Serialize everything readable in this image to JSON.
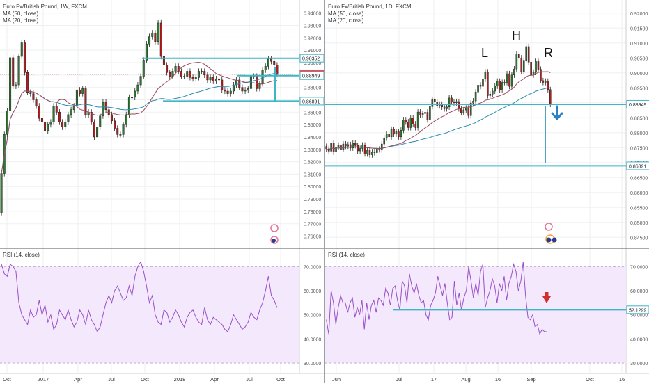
{
  "panes": [
    {
      "title": "Euro Fx/British Pound, 1W, FXCM",
      "indicators": [
        "MA (50, close)",
        "MA (20, close)"
      ],
      "rsi_label": "RSI (14, close)"
    },
    {
      "title": "Euro Fx/British Pound, 1D, FXCM",
      "indicators": [
        "MA (50, close)",
        "MA (20, close)"
      ],
      "rsi_label": "RSI (14, close)",
      "pattern_labels": [
        "L",
        "H",
        "R"
      ]
    }
  ],
  "colors": {
    "bull": "#2e7d32",
    "bear": "#b71c1c",
    "ma50": "#2a8ab0",
    "ma20": "#9c4a5e",
    "level": "#3fb5c6",
    "rsi_line": "#9b4fc8",
    "rsi_band": "#f3e8fc",
    "arrow_blue": "#2c7fc2",
    "arrow_red": "#d32f2f",
    "price_tag_red": "#e0505f"
  },
  "chart_data": [
    {
      "type": "candlestick",
      "title": "Euro Fx/British Pound, 1W, FXCM",
      "x_ticks": [
        "Oct",
        "2017",
        "Apr",
        "Jul",
        "Oct",
        "2018",
        "Apr",
        "Jul",
        "Oct"
      ],
      "y_ticks": [
        "0.94000",
        "0.93000",
        "0.92000",
        "0.91000",
        "0.90000",
        "0.89000",
        "0.88000",
        "0.87000",
        "0.86000",
        "0.85000",
        "0.84000",
        "0.83000",
        "0.82000",
        "0.81000",
        "0.80000",
        "0.79000",
        "0.78000",
        "0.77000",
        "0.76000"
      ],
      "ylim": [
        0.753,
        0.946
      ],
      "price_tags": [
        {
          "label": "0.90352",
          "value": 0.90352,
          "style": "level"
        },
        {
          "label": "0.89048",
          "value": 0.89048,
          "style": "current"
        },
        {
          "label": "0.88949",
          "value": 0.88949,
          "style": "level"
        },
        {
          "label": "0.86891",
          "value": 0.86891,
          "style": "level"
        }
      ],
      "levels": [
        0.90352,
        0.88949,
        0.86891
      ],
      "closes": [
        0.8105,
        0.842,
        0.861,
        0.904,
        0.881,
        0.882,
        0.905,
        0.916,
        0.892,
        0.876,
        0.875,
        0.87,
        0.865,
        0.855,
        0.852,
        0.845,
        0.85,
        0.852,
        0.865,
        0.86,
        0.852,
        0.848,
        0.852,
        0.858,
        0.862,
        0.865,
        0.878,
        0.875,
        0.879,
        0.858,
        0.86,
        0.852,
        0.84,
        0.848,
        0.857,
        0.868,
        0.862,
        0.858,
        0.853,
        0.847,
        0.842,
        0.842,
        0.85,
        0.858,
        0.872,
        0.872,
        0.877,
        0.882,
        0.889,
        0.902,
        0.915,
        0.921,
        0.924,
        0.917,
        0.932,
        0.905,
        0.898,
        0.892,
        0.889,
        0.893,
        0.897,
        0.893,
        0.889,
        0.889,
        0.893,
        0.888,
        0.887,
        0.888,
        0.893,
        0.893,
        0.89,
        0.886,
        0.888,
        0.885,
        0.887,
        0.886,
        0.878,
        0.877,
        0.875,
        0.877,
        0.882,
        0.886,
        0.88,
        0.877,
        0.878,
        0.879,
        0.889,
        0.889,
        0.879,
        0.883,
        0.894,
        0.897,
        0.903,
        0.901,
        0.898,
        0.8905
      ],
      "ma_note": "MA (50) and MA (20) overlays",
      "rsi": {
        "label": "RSI (14, close)",
        "y_ticks": [
          "70.0000",
          "60.0000",
          "50.0000",
          "40.0000",
          "30.0000"
        ],
        "ylim": [
          28,
          75
        ],
        "band": [
          30,
          70
        ],
        "values": [
          71,
          67,
          66,
          71,
          70,
          68,
          55,
          50,
          48,
          46,
          52,
          49,
          50,
          56,
          50,
          54,
          47,
          50,
          44,
          46,
          52,
          50,
          48,
          52,
          48,
          45,
          47,
          52,
          50,
          46,
          52,
          48,
          46,
          43,
          45,
          50,
          55,
          58,
          55,
          60,
          62,
          59,
          56,
          57,
          62,
          58,
          66,
          70,
          72,
          68,
          62,
          55,
          58,
          50,
          47,
          46,
          52,
          51,
          47,
          49,
          52,
          50,
          47,
          45,
          49,
          51,
          52,
          49,
          47,
          46,
          53,
          48,
          46,
          49,
          48,
          47,
          46,
          44,
          43,
          46,
          50,
          48,
          46,
          44,
          45,
          47,
          51,
          49,
          48,
          52,
          55,
          60,
          66,
          58,
          56,
          53
        ]
      }
    },
    {
      "type": "candlestick",
      "title": "Euro Fx/British Pound, 1D, FXCM",
      "x_ticks": [
        "Jun",
        "Jul",
        "17",
        "Aug",
        "16",
        "Sep",
        "Oct",
        "16"
      ],
      "y_ticks": [
        "0.92000",
        "0.91500",
        "0.91000",
        "0.90500",
        "0.90000",
        "0.89500",
        "0.89000",
        "0.88500",
        "0.88000",
        "0.87500",
        "0.87000",
        "0.86500",
        "0.86000",
        "0.85500",
        "0.85000",
        "0.84500"
      ],
      "ylim": [
        0.8425,
        0.9225
      ],
      "price_tags": [
        {
          "label": "0.88949",
          "value": 0.88949,
          "style": "level"
        },
        {
          "label": "0.86891",
          "value": 0.86891,
          "style": "level"
        }
      ],
      "levels": [
        0.88949,
        0.86891
      ],
      "pattern": [
        "L",
        "H",
        "R"
      ],
      "closes": [
        0.8746,
        0.8738,
        0.8766,
        0.8735,
        0.8752,
        0.8758,
        0.8744,
        0.8762,
        0.8755,
        0.876,
        0.8749,
        0.8765,
        0.8757,
        0.8739,
        0.8747,
        0.8758,
        0.8729,
        0.8741,
        0.8726,
        0.8736,
        0.8733,
        0.8745,
        0.8743,
        0.8762,
        0.8782,
        0.8796,
        0.8786,
        0.8811,
        0.8795,
        0.8803,
        0.8786,
        0.8808,
        0.8843,
        0.8836,
        0.8817,
        0.8849,
        0.8829,
        0.8817,
        0.8869,
        0.8858,
        0.8864,
        0.8868,
        0.8843,
        0.8887,
        0.8911,
        0.8903,
        0.889,
        0.8895,
        0.8886,
        0.888,
        0.8886,
        0.8916,
        0.8903,
        0.89,
        0.8904,
        0.888,
        0.8867,
        0.8876,
        0.8882,
        0.8857,
        0.8899,
        0.8906,
        0.8936,
        0.8959,
        0.8955,
        0.8979,
        0.9003,
        0.8924,
        0.8929,
        0.8939,
        0.8956,
        0.8972,
        0.8943,
        0.8968,
        0.8968,
        0.8997,
        0.8955,
        0.8993,
        0.9013,
        0.9063,
        0.905,
        0.9004,
        0.9042,
        0.9088,
        0.9036,
        0.8993,
        0.9002,
        0.9038,
        0.9012,
        0.8974,
        0.8968,
        0.8972,
        0.8944,
        0.8895
      ],
      "rsi": {
        "label": "RSI (14, close)",
        "y_ticks": [
          "70.0000",
          "60.0000",
          "50.0000",
          "40.0000",
          "30.0000"
        ],
        "ylim": [
          28,
          75
        ],
        "band": [
          30,
          70
        ],
        "level": 52.1299,
        "level_label": "52.1299",
        "values": [
          48,
          42,
          60,
          55,
          46,
          53,
          58,
          55,
          55,
          51,
          55,
          57,
          49,
          53,
          50,
          56,
          44,
          55,
          48,
          54,
          56,
          51,
          57,
          56,
          54,
          61,
          59,
          54,
          61,
          62,
          56,
          52,
          64,
          62,
          55,
          67,
          62,
          59,
          63,
          58,
          55,
          56,
          50,
          48,
          54,
          56,
          59,
          66,
          62,
          58,
          63,
          55,
          48,
          49,
          64,
          54,
          59,
          52,
          57,
          60,
          70,
          64,
          57,
          63,
          58,
          68,
          71,
          53,
          57,
          60,
          65,
          62,
          55,
          63,
          60,
          66,
          56,
          63,
          66,
          71,
          68,
          60,
          64,
          72,
          58,
          49,
          48,
          50,
          45,
          46,
          42,
          44,
          43,
          43
        ]
      }
    }
  ]
}
